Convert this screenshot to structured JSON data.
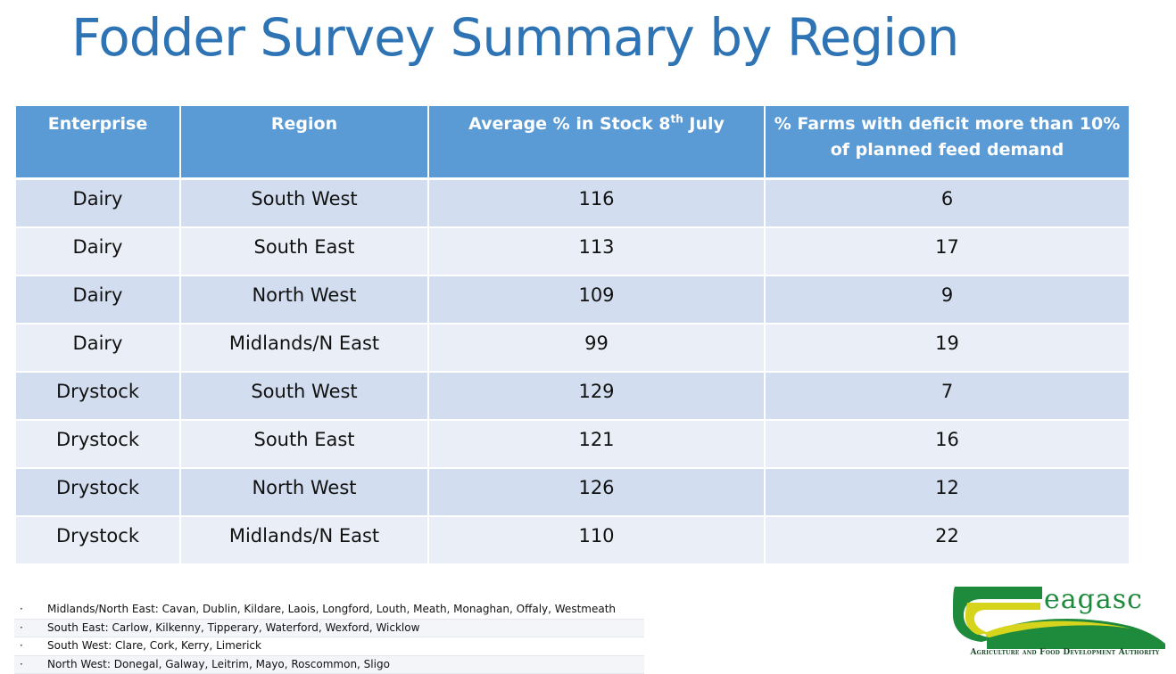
{
  "title": "Fodder Survey Summary by Region",
  "table": {
    "headers": {
      "enterprise": "Enterprise",
      "region": "Region",
      "stock_main": "Average % in Stock 8",
      "stock_sup": "th",
      "stock_tail": " July",
      "deficit_line1": "% Farms with deficit more than 10%",
      "deficit_line2": "of planned feed demand"
    },
    "rows": [
      {
        "enterprise": "Dairy",
        "region": "South West",
        "stock": "116",
        "deficit": "6"
      },
      {
        "enterprise": "Dairy",
        "region": "South East",
        "stock": "113",
        "deficit": "17"
      },
      {
        "enterprise": "Dairy",
        "region": "North West",
        "stock": "109",
        "deficit": "9"
      },
      {
        "enterprise": "Dairy",
        "region": "Midlands/N East",
        "stock": "99",
        "deficit": "19"
      },
      {
        "enterprise": "Drystock",
        "region": "South West",
        "stock": "129",
        "deficit": "7"
      },
      {
        "enterprise": "Drystock",
        "region": "South East",
        "stock": "121",
        "deficit": "16"
      },
      {
        "enterprise": "Drystock",
        "region": "North West",
        "stock": "126",
        "deficit": "12"
      },
      {
        "enterprise": "Drystock",
        "region": "Midlands/N East",
        "stock": "110",
        "deficit": "22"
      }
    ]
  },
  "legend": [
    {
      "bullet": "·",
      "text": "Midlands/North East: Cavan, Dublin, Kildare, Laois, Longford, Louth, Meath, Monaghan, Offaly, Westmeath"
    },
    {
      "bullet": "·",
      "text": "South East: Carlow, Kilkenny, Tipperary, Waterford, Wexford, Wicklow"
    },
    {
      "bullet": "·",
      "text": "South West: Clare, Cork, Kerry, Limerick"
    },
    {
      "bullet": "·",
      "text": "North West: Donegal, Galway, Leitrim, Mayo, Roscommon, Sligo"
    }
  ],
  "logo": {
    "wordmark": "eagasc",
    "tagline": "Agriculture and Food Development Authority",
    "colors": {
      "green": "#1e8a3c",
      "yellow": "#d6d41c",
      "dark": "#1a4a2a"
    }
  }
}
